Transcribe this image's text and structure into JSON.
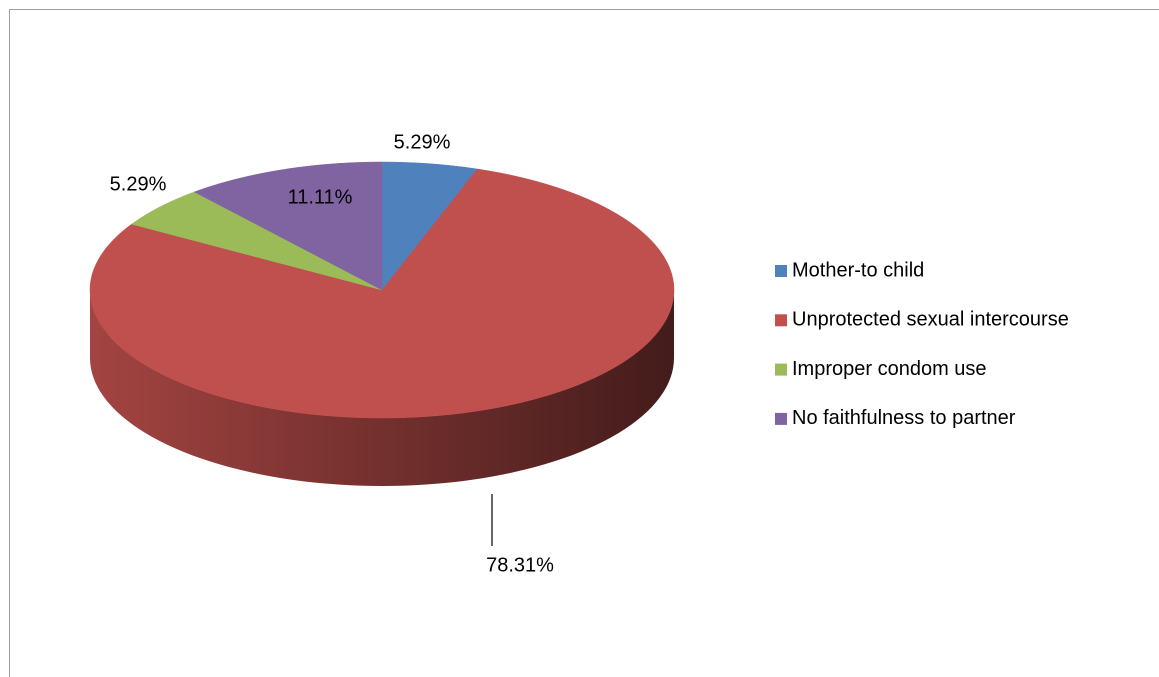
{
  "chart_data": {
    "type": "pie",
    "categories": [
      "Mother-to child",
      "Unprotected sexual intercourse",
      "Improper condom use",
      "No faithfulness to partner"
    ],
    "values": [
      5.29,
      78.31,
      5.29,
      11.11
    ],
    "value_labels": [
      "5.29%",
      "78.31%",
      "5.29%",
      "11.11%"
    ],
    "colors": [
      "#4f81bd",
      "#c0504d",
      "#9bbb59",
      "#8064a2"
    ],
    "legend": "right"
  }
}
